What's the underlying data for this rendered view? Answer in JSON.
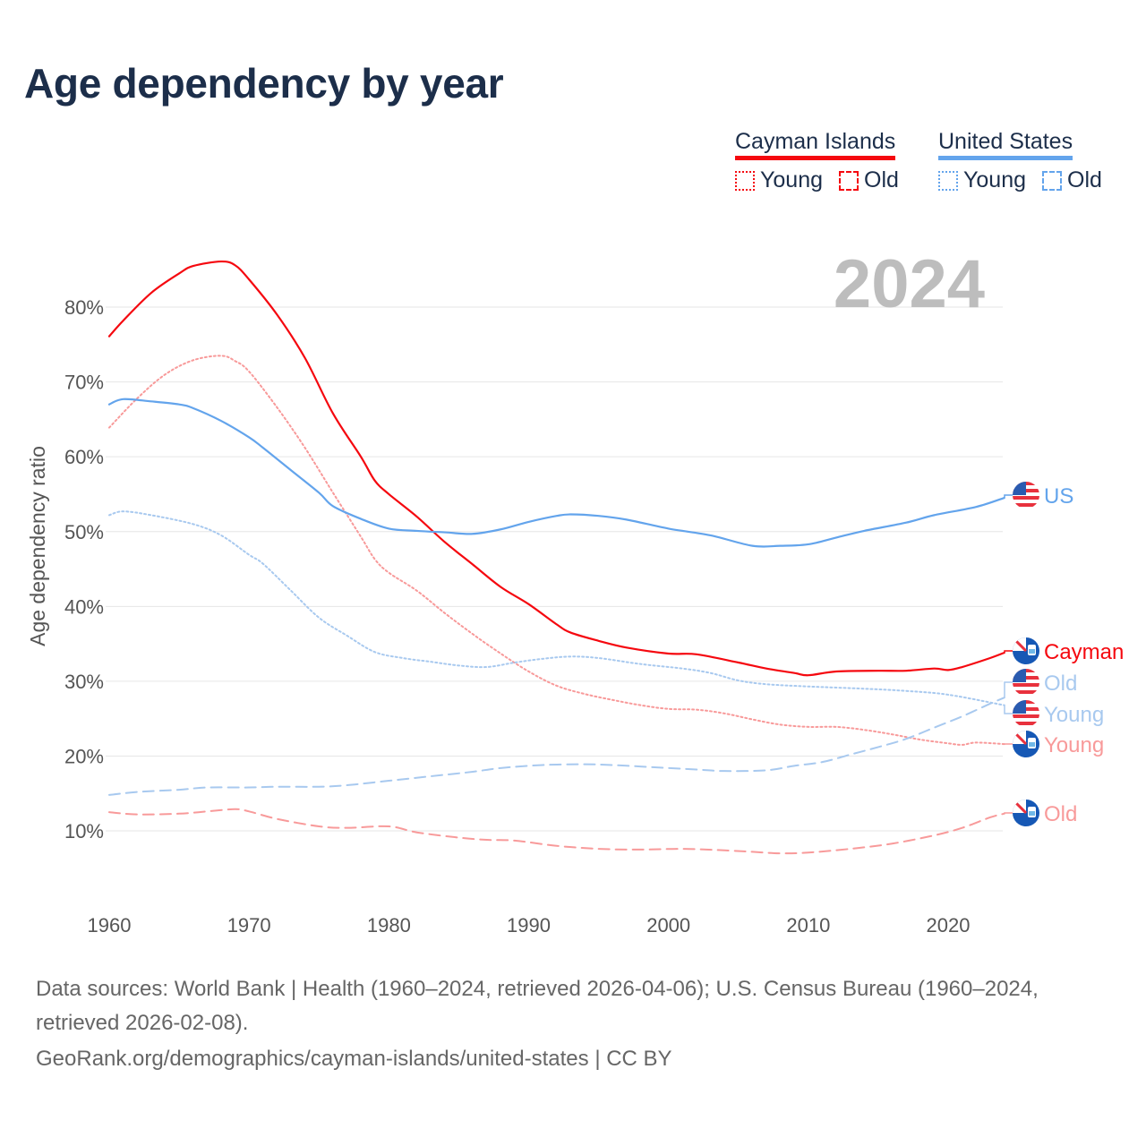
{
  "title": "Age dependency by year",
  "legend": {
    "groups": [
      {
        "name": "Cayman Islands",
        "color": "#f5080f",
        "items": [
          "Young",
          "Old"
        ]
      },
      {
        "name": "United States",
        "color": "#63a4ec",
        "items": [
          "Young",
          "Old"
        ]
      }
    ]
  },
  "watermark_year": "2024",
  "footer": {
    "sources": "Data sources: World Bank | Health (1960–2024, retrieved 2026-04-06); U.S. Census Bureau (1960–2024, retrieved 2026-02-08).",
    "attribution": "GeoRank.org/demographics/cayman-islands/united-states | CC BY"
  },
  "chart_data": {
    "type": "line",
    "title": "Age dependency by year",
    "xlabel": "",
    "ylabel": "Age dependency ratio",
    "xlim": [
      1960,
      2024
    ],
    "ylim": [
      0,
      85
    ],
    "x_ticks": [
      "1960",
      "1970",
      "1980",
      "1990",
      "2000",
      "2010",
      "2020"
    ],
    "y_ticks": [
      "10%",
      "20%",
      "30%",
      "40%",
      "50%",
      "60%",
      "70%",
      "80%"
    ],
    "grid": true,
    "legend_position": "top-right",
    "series": [
      {
        "name": "Cayman Islands total",
        "end_label": "Cayman",
        "color": "#f5080f",
        "style": "solid",
        "x": [
          1960,
          1961,
          1963,
          1965,
          1966,
          1968,
          1969,
          1970,
          1972,
          1974,
          1976,
          1978,
          1979,
          1980,
          1982,
          1984,
          1986,
          1988,
          1990,
          1992,
          1993,
          1995,
          1997,
          2000,
          2002,
          2005,
          2007,
          2009,
          2010,
          2012,
          2015,
          2017,
          2019,
          2020,
          2021,
          2023,
          2024
        ],
        "y": [
          76.1,
          78.2,
          81.9,
          84.5,
          85.5,
          86.1,
          85.6,
          83.7,
          79,
          73.2,
          65.8,
          60,
          56.8,
          55,
          52,
          48.6,
          45.6,
          42.6,
          40.3,
          37.6,
          36.5,
          35.4,
          34.5,
          33.7,
          33.6,
          32.5,
          31.7,
          31.1,
          30.8,
          31.3,
          31.4,
          31.4,
          31.7,
          31.5,
          31.9,
          33.1,
          33.8
        ]
      },
      {
        "name": "Cayman Islands young",
        "end_label": "Young",
        "color": "#f89a9a",
        "style": "dotted",
        "x": [
          1960,
          1962,
          1964,
          1966,
          1968,
          1969,
          1970,
          1972,
          1974,
          1976,
          1978,
          1979,
          1980,
          1982,
          1984,
          1986,
          1988,
          1990,
          1992,
          1994,
          1996,
          1998,
          2000,
          2002,
          2004,
          2006,
          2008,
          2010,
          2012,
          2014,
          2016,
          2018,
          2020,
          2021,
          2022,
          2024
        ],
        "y": [
          63.9,
          67.8,
          71,
          72.9,
          73.5,
          72.8,
          71.4,
          66.6,
          61.2,
          55.2,
          49.3,
          46.3,
          44.5,
          42.1,
          39.1,
          36.3,
          33.7,
          31.3,
          29.4,
          28.3,
          27.5,
          26.8,
          26.3,
          26.2,
          25.7,
          24.9,
          24.2,
          23.9,
          23.9,
          23.5,
          22.9,
          22.2,
          21.7,
          21.5,
          21.8,
          21.6
        ]
      },
      {
        "name": "Cayman Islands old",
        "end_label": "Old",
        "color": "#f89a9a",
        "style": "dashed",
        "x": [
          1960,
          1962,
          1965,
          1967,
          1969,
          1970,
          1972,
          1975,
          1977,
          1980,
          1982,
          1985,
          1987,
          1989,
          1992,
          1995,
          1998,
          2001,
          2004,
          2006,
          2008,
          2010,
          2013,
          2016,
          2019,
          2021,
          2023,
          2024
        ],
        "y": [
          12.5,
          12.2,
          12.3,
          12.6,
          12.9,
          12.6,
          11.6,
          10.6,
          10.4,
          10.6,
          9.8,
          9.1,
          8.8,
          8.7,
          8,
          7.6,
          7.5,
          7.6,
          7.4,
          7.2,
          7.0,
          7.1,
          7.6,
          8.3,
          9.4,
          10.4,
          11.8,
          12.3
        ]
      },
      {
        "name": "United States total",
        "end_label": "US",
        "color": "#63a4ec",
        "style": "solid",
        "x": [
          1960,
          1961,
          1963,
          1965,
          1966,
          1968,
          1970,
          1971,
          1973,
          1975,
          1976,
          1978,
          1980,
          1982,
          1984,
          1986,
          1988,
          1990,
          1992,
          1993,
          1995,
          1997,
          2000,
          2003,
          2006,
          2008,
          2010,
          2012,
          2014,
          2017,
          2019,
          2022,
          2024
        ],
        "y": [
          67,
          67.7,
          67.4,
          67,
          66.5,
          64.8,
          62.6,
          61.2,
          58.2,
          55.2,
          53.4,
          51.7,
          50.4,
          50.1,
          49.9,
          49.7,
          50.3,
          51.3,
          52.1,
          52.3,
          52.1,
          51.6,
          50.4,
          49.5,
          48.1,
          48.1,
          48.3,
          49.2,
          50.1,
          51.2,
          52.2,
          53.3,
          54.5
        ]
      },
      {
        "name": "United States young",
        "end_label": "Young",
        "color": "#a8c9ef",
        "style": "dotted",
        "x": [
          1960,
          1961,
          1963,
          1966,
          1968,
          1970,
          1971,
          1973,
          1975,
          1977,
          1979,
          1981,
          1983,
          1985,
          1987,
          1989,
          1991,
          1993,
          1995,
          1998,
          2001,
          2003,
          2005,
          2007,
          2010,
          2014,
          2017,
          2020,
          2024
        ],
        "y": [
          52.2,
          52.7,
          52.2,
          51,
          49.5,
          46.9,
          45.7,
          42.1,
          38.5,
          36.1,
          33.9,
          33.1,
          32.6,
          32.1,
          31.9,
          32.5,
          33,
          33.3,
          33.1,
          32.3,
          31.7,
          31.1,
          30.1,
          29.6,
          29.3,
          29,
          28.7,
          28.2,
          26.8
        ]
      },
      {
        "name": "United States old",
        "end_label": "Old",
        "color": "#a8c9ef",
        "style": "dashed",
        "x": [
          1960,
          1962,
          1965,
          1967,
          1970,
          1972,
          1975,
          1977,
          1980,
          1983,
          1986,
          1988,
          1991,
          1994,
          1996,
          1999,
          2002,
          2004,
          2007,
          2009,
          2011,
          2013,
          2015,
          2017,
          2019,
          2021,
          2023,
          2024
        ],
        "y": [
          14.8,
          15.2,
          15.5,
          15.8,
          15.8,
          15.9,
          15.9,
          16.1,
          16.7,
          17.3,
          17.9,
          18.4,
          18.8,
          18.9,
          18.8,
          18.5,
          18.2,
          18,
          18.1,
          18.7,
          19.2,
          20.2,
          21.2,
          22.3,
          23.8,
          25.3,
          27,
          27.8
        ]
      }
    ]
  }
}
